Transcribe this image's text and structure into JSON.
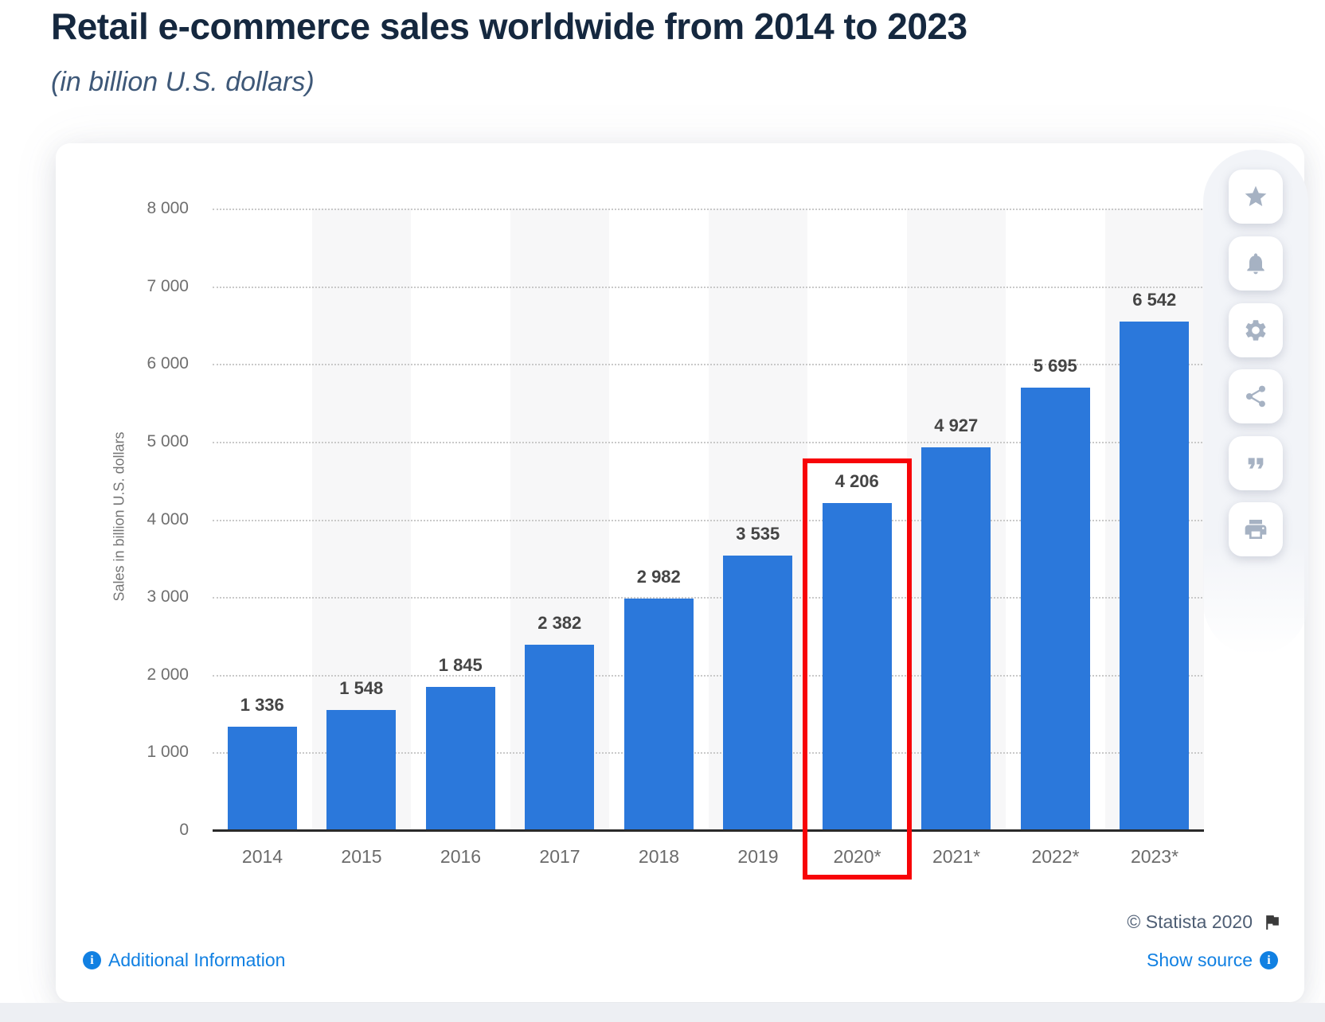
{
  "page": {
    "title": "Retail e-commerce sales worldwide from 2014 to 2023",
    "subtitle": "(in billion U.S. dollars)"
  },
  "chart_data": {
    "type": "bar",
    "title": "Retail e-commerce sales worldwide from 2014 to 2023",
    "subtitle": "(in billion U.S. dollars)",
    "categories": [
      "2014",
      "2015",
      "2016",
      "2017",
      "2018",
      "2019",
      "2020*",
      "2021*",
      "2022*",
      "2023*"
    ],
    "values": [
      1336,
      1548,
      1845,
      2382,
      2982,
      3535,
      4206,
      4927,
      5695,
      6542
    ],
    "value_labels": [
      "1 336",
      "1 548",
      "1 845",
      "2 382",
      "2 982",
      "3 535",
      "4 206",
      "4 927",
      "5 695",
      "6 542"
    ],
    "xlabel": "",
    "ylabel": "Sales in billion U.S. dollars",
    "ylim": [
      0,
      8000
    ],
    "ytick_interval": 1000,
    "yticks_labels": [
      "0",
      "1 000",
      "2 000",
      "3 000",
      "4 000",
      "5 000",
      "6 000",
      "7 000",
      "8 000"
    ],
    "grid": "horizontal-dotted",
    "legend": "none",
    "bar_color": "#2b78db",
    "alternating_band_color": "#f7f7f8",
    "highlighted_category": "2020*",
    "highlight_box_color": "#f70408"
  },
  "toolbar": {
    "buttons": [
      {
        "name": "star"
      },
      {
        "name": "bell"
      },
      {
        "name": "gear"
      },
      {
        "name": "share"
      },
      {
        "name": "quote"
      },
      {
        "name": "printer"
      }
    ]
  },
  "footer": {
    "credit": "© Statista 2020",
    "additional_info_label": "Additional Information",
    "show_source_label": "Show source"
  }
}
